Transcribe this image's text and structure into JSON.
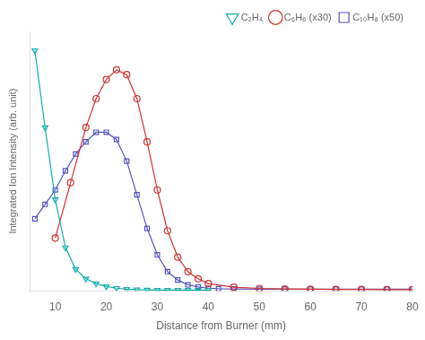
{
  "chart_data": {
    "type": "line",
    "xlabel": "Distance from Burner (mm)",
    "ylabel": "Integrated Ion Intensity (arb. unit)",
    "xlim": [
      5,
      80
    ],
    "xticks": [
      10,
      20,
      30,
      40,
      50,
      60,
      70,
      80
    ],
    "ylim": [
      0,
      1.08
    ],
    "yticks": [],
    "tick_labels": "x",
    "grid": false,
    "legend": "upper right",
    "series": [
      {
        "name": "C₂H₄",
        "color": "#1aadad",
        "marker": "triangle-down",
        "x": [
          6,
          8,
          10,
          12,
          14,
          16,
          18,
          20,
          22,
          24,
          26,
          28,
          30,
          32,
          34,
          36,
          38,
          40
        ],
        "values": [
          1.0,
          0.68,
          0.38,
          0.18,
          0.09,
          0.05,
          0.03,
          0.018,
          0.011,
          0.007,
          0.005,
          0.004,
          0.003,
          0.003,
          0.003,
          0.003,
          0.003,
          0.003
        ]
      },
      {
        "name": "C₆H₆ (x30)",
        "color": "#cc3333",
        "marker": "circle",
        "x": [
          10,
          13,
          16,
          18,
          20,
          22,
          24,
          26,
          28,
          30,
          32,
          34,
          36,
          38,
          40,
          45,
          50,
          55,
          60,
          65,
          70,
          75,
          80
        ],
        "values": [
          0.22,
          0.45,
          0.68,
          0.8,
          0.88,
          0.92,
          0.9,
          0.8,
          0.62,
          0.42,
          0.25,
          0.14,
          0.08,
          0.05,
          0.03,
          0.015,
          0.01,
          0.008,
          0.007,
          0.006,
          0.006,
          0.005,
          0.005
        ]
      },
      {
        "name": "C₁₀H₈ (x50)",
        "color": "#5555bb",
        "marker": "square",
        "x": [
          6,
          8,
          10,
          12,
          14,
          16,
          18,
          20,
          22,
          24,
          26,
          28,
          30,
          32,
          34,
          36,
          38,
          40,
          42,
          45,
          50,
          55,
          60,
          65,
          70,
          75,
          80
        ],
        "values": [
          0.3,
          0.36,
          0.42,
          0.5,
          0.57,
          0.62,
          0.66,
          0.66,
          0.63,
          0.54,
          0.4,
          0.26,
          0.15,
          0.08,
          0.045,
          0.025,
          0.016,
          0.011,
          0.009,
          0.008,
          0.007,
          0.007,
          0.007,
          0.007,
          0.007,
          0.007,
          0.007
        ]
      }
    ]
  }
}
